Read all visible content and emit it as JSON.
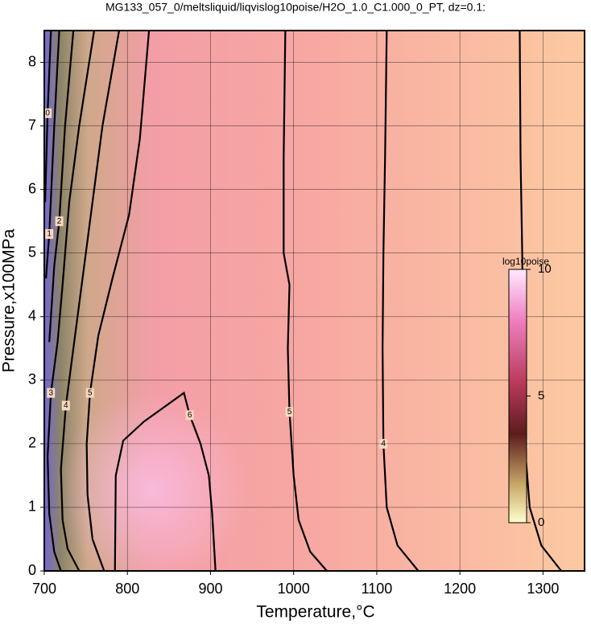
{
  "chart_data": {
    "type": "contour",
    "title": "MG133_057_0/meltsliquid/liqvislog10poise/H2O_1.0_C1.000_0_PT, dz=0.1:",
    "x_label": "Temperature,°C",
    "y_label": "Pressure,x100MPa",
    "xlim": [
      700,
      1350
    ],
    "ylim": [
      0,
      8.5
    ],
    "xticks": [
      700,
      800,
      900,
      1000,
      1100,
      1200,
      1300
    ],
    "yticks": [
      0,
      1,
      2,
      3,
      4,
      5,
      6,
      7,
      8
    ],
    "grid": true,
    "contours": [
      {
        "level": 0,
        "x": [
          708,
          704,
          701
        ],
        "y": [
          8.5,
          7.2,
          5.8
        ]
      },
      {
        "level": 1,
        "x": [
          718,
          712,
          706,
          702
        ],
        "y": [
          8.5,
          7.0,
          5.3,
          4.6
        ]
      },
      {
        "level": 2,
        "x": [
          735,
          725,
          718,
          712,
          706
        ],
        "y": [
          8.5,
          7.0,
          5.5,
          4.8,
          3.6
        ]
      },
      {
        "level": 3,
        "x": [
          760,
          742,
          730,
          722,
          716,
          708,
          704,
          706,
          712,
          720
        ],
        "y": [
          8.5,
          7.0,
          5.8,
          4.5,
          3.6,
          2.8,
          1.8,
          0.9,
          0.3,
          0
        ]
      },
      {
        "level": 4,
        "x": [
          790,
          770,
          755,
          745,
          735,
          726,
          720,
          722,
          728,
          742
        ],
        "y": [
          8.5,
          7.0,
          5.5,
          4.5,
          3.5,
          2.6,
          1.6,
          0.8,
          0.35,
          0
        ]
      },
      {
        "level": 5,
        "x": [
          826,
          815,
          802,
          782,
          765,
          755,
          751,
          752,
          758,
          772
        ],
        "y": [
          8.5,
          6.8,
          5.6,
          4.6,
          3.7,
          2.8,
          2.0,
          1.2,
          0.5,
          0
        ]
      },
      {
        "level": 6,
        "x": [
          785,
          786,
          795,
          820,
          868,
          875,
          888,
          898,
          902,
          906
        ],
        "y": [
          0,
          1.5,
          2.05,
          2.35,
          2.8,
          2.45,
          2.0,
          1.5,
          0.9,
          0
        ]
      },
      {
        "level": 5,
        "x": [
          990,
          988,
          988,
          995,
          993,
          995,
          1000,
          1006,
          1020,
          1040
        ],
        "y": [
          8.5,
          6.5,
          5.0,
          4.5,
          3.5,
          2.5,
          1.5,
          0.8,
          0.3,
          0
        ]
      },
      {
        "level": 4,
        "x": [
          1112,
          1110,
          1108,
          1107,
          1108,
          1112,
          1125,
          1150
        ],
        "y": [
          8.5,
          6.5,
          5.0,
          3.5,
          2.0,
          1.0,
          0.4,
          0
        ]
      },
      {
        "level": 3,
        "x": [
          1272,
          1273,
          1275,
          1276,
          1278,
          1284,
          1298,
          1322
        ],
        "y": [
          8.5,
          6.5,
          5.0,
          3.5,
          2.0,
          1.0,
          0.4,
          0
        ]
      }
    ],
    "colorbar": {
      "label": "log10poise",
      "lim": [
        0,
        10
      ],
      "ticks": [
        0,
        5,
        10
      ]
    }
  }
}
